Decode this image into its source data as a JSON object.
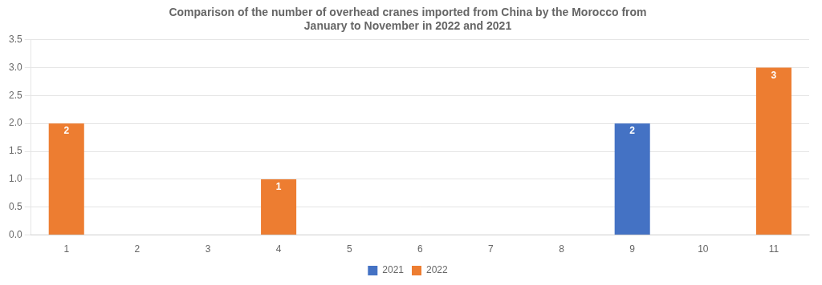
{
  "chart_data": {
    "type": "bar",
    "title": "Comparison of the number of overhead cranes imported from China by the Morocco from\nJanuary to November in 2022 and 2021",
    "categories": [
      "1",
      "2",
      "3",
      "4",
      "5",
      "6",
      "7",
      "8",
      "9",
      "10",
      "11"
    ],
    "series": [
      {
        "name": "2021",
        "color": "#4472C4",
        "values": [
          0,
          0,
          0,
          0,
          0,
          0,
          0,
          0,
          2,
          0,
          0
        ]
      },
      {
        "name": "2022",
        "color": "#ED7D31",
        "values": [
          2,
          0,
          0,
          1,
          0,
          0,
          0,
          0,
          0,
          0,
          3
        ]
      }
    ],
    "ylim": [
      0,
      3.5
    ],
    "yticks": [
      {
        "value": 0,
        "label": "0.0"
      },
      {
        "value": 0.5,
        "label": "0.5"
      },
      {
        "value": 1,
        "label": "1.0"
      },
      {
        "value": 1.5,
        "label": "1.5"
      },
      {
        "value": 2,
        "label": "2.0"
      },
      {
        "value": 2.5,
        "label": "2.5"
      },
      {
        "value": 3,
        "label": "3.0"
      },
      {
        "value": 3.5,
        "label": "3.5"
      }
    ],
    "grid": true,
    "legend": "bottom",
    "data_labels": true
  }
}
